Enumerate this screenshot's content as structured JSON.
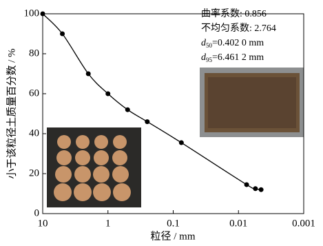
{
  "chart_data": {
    "type": "line",
    "xlabel": "粒径 / mm",
    "ylabel": "小于该粒径土质量百分数 / %",
    "xscale": "log",
    "xlim": [
      10,
      0.001
    ],
    "xticks": [
      10,
      1,
      0.1,
      0.01,
      0.001
    ],
    "ylim": [
      0,
      100
    ],
    "yticks": [
      0,
      20,
      40,
      60,
      80,
      100
    ],
    "color": "#000000",
    "x": [
      10,
      5,
      2,
      1,
      0.5,
      0.25,
      0.075,
      0.0075,
      0.0055,
      0.0045
    ],
    "values": [
      100,
      90,
      70,
      60,
      52,
      46,
      35.5,
      14.5,
      12.5,
      12
    ],
    "annotations": [
      {
        "text": "曲率系数: 0.856"
      },
      {
        "text": "不均匀系数: 2.764"
      },
      {
        "symbol": "d",
        "sub": "50",
        "text": "=0.402 0 mm"
      },
      {
        "symbol": "d",
        "sub": "95",
        "text": "=6.461 2 mm"
      }
    ]
  }
}
